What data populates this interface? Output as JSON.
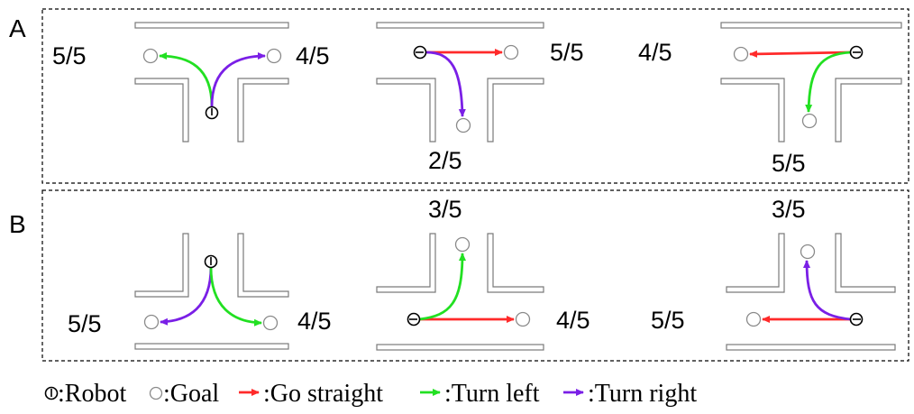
{
  "colors": {
    "straight": "#ff2a2a",
    "left": "#22e022",
    "right": "#7a1fe6",
    "wall": "#7a7a7a",
    "goal": "#8a8a8a"
  },
  "panels": [
    {
      "label": "A",
      "scenarios": [
        {
          "scores": [
            "5/5",
            "4/5"
          ]
        },
        {
          "scores": [
            "5/5",
            "2/5"
          ]
        },
        {
          "scores": [
            "4/5",
            "5/5"
          ]
        }
      ]
    },
    {
      "label": "B",
      "scenarios": [
        {
          "scores": [
            "5/5",
            "4/5"
          ]
        },
        {
          "scores": [
            "3/5",
            "4/5"
          ]
        },
        {
          "scores": [
            "3/5",
            "5/5"
          ]
        }
      ]
    }
  ],
  "legend": {
    "robot": ":Robot",
    "goal": ":Goal",
    "straight": ":Go straight",
    "left": ":Turn left",
    "right": ":Turn right"
  }
}
